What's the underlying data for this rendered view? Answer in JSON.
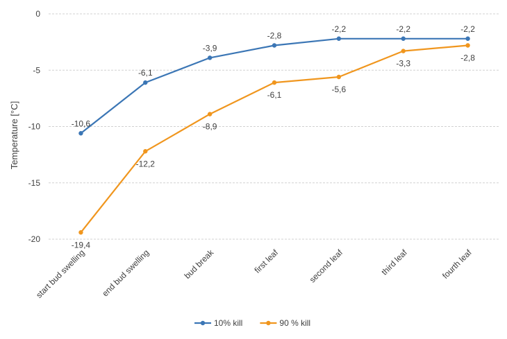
{
  "chart_data": {
    "type": "line",
    "title": "",
    "xlabel": "",
    "ylabel": "Temperature [°C]",
    "ylim": [
      -20,
      0
    ],
    "yticks": [
      0,
      -5,
      -10,
      -15,
      -20
    ],
    "grid": true,
    "legend_position": "bottom",
    "categories": [
      "start bud swelling",
      "end bud swelling",
      "bud break",
      "first leaf",
      "second leaf",
      "third leaf",
      "fourth leaf"
    ],
    "series": [
      {
        "name": "10% kill",
        "color": "#3b76b5",
        "values": [
          -10.6,
          -6.1,
          -3.9,
          -2.8,
          -2.2,
          -2.2,
          -2.2
        ],
        "labels": [
          "-10,6",
          "-6,1",
          "-3,9",
          "-2,8",
          "-2,2",
          "-2,2",
          "-2,2"
        ],
        "label_side": "above"
      },
      {
        "name": "90 % kill",
        "color": "#f0961e",
        "values": [
          -19.4,
          -12.2,
          -8.9,
          -6.1,
          -5.6,
          -3.3,
          -2.8
        ],
        "labels": [
          "-19,4",
          "-12,2",
          "-8,9",
          "-6,1",
          "-5,6",
          "-3,3",
          "-2,8"
        ],
        "label_side": "below"
      }
    ]
  }
}
